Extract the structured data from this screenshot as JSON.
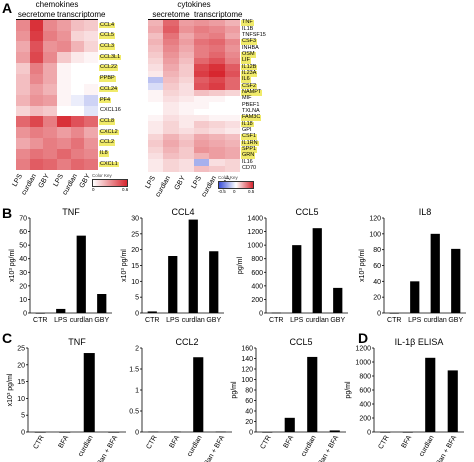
{
  "panels": {
    "A": "A",
    "B": "B",
    "C": "C",
    "D": "D"
  },
  "heatmap_left": {
    "group_label": "chemokines",
    "sub_labels": [
      "secretome",
      "transcriptome"
    ],
    "columns": [
      "LPS",
      "curdlan",
      "GBY",
      "LPS",
      "curdlan",
      "GBY"
    ],
    "genes": [
      "CCL4",
      "CCL5",
      "CCL3",
      "CCL3L1",
      "CCL22",
      "PPBP",
      "CCL24",
      "PF4",
      "CXCL16",
      "CCL8",
      "CXCL2",
      "CCL2",
      "IL8",
      "CXCL1"
    ],
    "highlighted": [
      "CCL4",
      "CCL5",
      "CCL3",
      "CCL3L1",
      "CCL22",
      "PPBP",
      "CCL24",
      "PF4",
      "CCL8",
      "CXCL2",
      "CCL2",
      "IL8",
      "CXCL1"
    ],
    "values": [
      [
        0.55,
        0.95,
        0.55,
        0.45,
        0.3,
        0.25
      ],
      [
        0.5,
        0.9,
        0.6,
        0.5,
        0.2,
        0.15
      ],
      [
        0.4,
        0.8,
        0.5,
        0.55,
        0.35,
        0.2
      ],
      [
        0.45,
        0.85,
        0.55,
        0.25,
        0.1,
        0.05
      ],
      [
        0.25,
        0.6,
        0.4,
        0.05,
        0.0,
        0.0
      ],
      [
        0.3,
        0.55,
        0.4,
        0.05,
        0.0,
        0.0
      ],
      [
        0.3,
        0.45,
        0.35,
        0.05,
        0.0,
        0.05
      ],
      [
        0.35,
        0.5,
        0.45,
        0.05,
        -0.1,
        -0.25
      ],
      [
        0.2,
        0.3,
        0.25,
        0.0,
        0.0,
        -0.15
      ],
      [
        0.7,
        0.85,
        0.6,
        0.95,
        0.8,
        0.7
      ],
      [
        0.5,
        0.6,
        0.55,
        0.45,
        0.55,
        0.4
      ],
      [
        0.4,
        0.5,
        0.6,
        0.55,
        0.65,
        0.5
      ],
      [
        0.55,
        0.65,
        0.6,
        0.7,
        0.6,
        0.55
      ],
      [
        0.6,
        0.75,
        0.7,
        0.6,
        0.7,
        0.65
      ]
    ],
    "key_title": "Color Key",
    "key_ticks": [
      "0",
      "0.6"
    ]
  },
  "heatmap_right": {
    "group_label": "cytokines",
    "sub_labels": [
      "secretome",
      "transcriptome"
    ],
    "columns": [
      "LPS",
      "curdlan",
      "GBY",
      "LPS",
      "curdlan",
      "GBY"
    ],
    "genes": [
      "TNF",
      "IL1B",
      "TNFSF15",
      "CSF3",
      "INHBA",
      "OSM",
      "LIF",
      "IL12B",
      "IL23A",
      "IL6",
      "CSF2",
      "NAMPT",
      "MIF",
      "PBEF1",
      "TXLNA",
      "FAM3C",
      "IL18",
      "GPI",
      "CSF1",
      "IL1RN",
      "SPP1",
      "GRN",
      "IL16",
      "CD70"
    ],
    "highlighted": [
      "TNF",
      "CSF3",
      "OSM",
      "LIF",
      "IL12B",
      "IL23A",
      "IL6",
      "CSF2",
      "NAMPT",
      "FAM3C",
      "IL18",
      "CSF1",
      "IL1RN",
      "SPP1",
      "GRN"
    ],
    "values": [
      [
        0.35,
        0.7,
        0.45,
        0.5,
        0.45,
        0.35
      ],
      [
        0.4,
        0.75,
        0.5,
        0.6,
        0.55,
        0.45
      ],
      [
        0.3,
        0.65,
        0.4,
        0.55,
        0.6,
        0.4
      ],
      [
        0.35,
        0.6,
        0.45,
        0.65,
        0.7,
        0.55
      ],
      [
        0.3,
        0.55,
        0.4,
        0.6,
        0.65,
        0.5
      ],
      [
        0.25,
        0.5,
        0.35,
        0.6,
        0.7,
        0.55
      ],
      [
        0.2,
        0.45,
        0.3,
        0.7,
        0.8,
        0.6
      ],
      [
        0.15,
        0.4,
        0.25,
        0.85,
        0.95,
        0.75
      ],
      [
        0.1,
        0.35,
        0.25,
        0.9,
        1.0,
        0.8
      ],
      [
        -0.35,
        0.3,
        0.2,
        0.75,
        0.85,
        0.7
      ],
      [
        -0.2,
        0.25,
        0.15,
        0.8,
        0.9,
        0.7
      ],
      [
        0.05,
        0.2,
        0.15,
        0.3,
        0.25,
        0.2
      ],
      [
        0.05,
        0.15,
        0.1,
        0.05,
        0.05,
        0.0
      ],
      [
        0.0,
        0.1,
        0.05,
        0.05,
        0.0,
        0.0
      ],
      [
        0.0,
        0.1,
        0.05,
        0.0,
        0.0,
        0.0
      ],
      [
        0.05,
        0.15,
        0.1,
        0.1,
        0.05,
        0.05
      ],
      [
        0.1,
        0.2,
        0.1,
        0.25,
        0.2,
        0.15
      ],
      [
        0.1,
        0.2,
        0.15,
        0.2,
        0.15,
        0.1
      ],
      [
        0.2,
        0.35,
        0.25,
        0.4,
        0.35,
        0.3
      ],
      [
        0.25,
        0.4,
        0.3,
        0.45,
        0.4,
        0.35
      ],
      [
        0.2,
        0.35,
        0.25,
        0.5,
        0.45,
        0.4
      ],
      [
        0.15,
        0.3,
        0.25,
        0.35,
        0.45,
        0.4
      ],
      [
        0.1,
        0.2,
        0.15,
        -0.45,
        0.15,
        0.2
      ],
      [
        0.1,
        0.2,
        0.15,
        0.3,
        0.25,
        0.2
      ]
    ],
    "key_title": "Color Key",
    "key_ticks": [
      "-0.5",
      "0",
      "0.5"
    ]
  },
  "colors": {
    "heat_high": "#d7262f",
    "heat_mid": "#ffffff",
    "heat_low": "#3a4fd8",
    "highlight": "#f0ea6a",
    "bar": "#000000"
  },
  "chart_data": [
    {
      "type": "bar",
      "title": "TNF",
      "ylabel": "x10³ pg/ml",
      "categories": [
        "CTR",
        "LPS",
        "curdlan",
        "GBY"
      ],
      "values": [
        0,
        3,
        57,
        14
      ],
      "ylim": [
        0,
        70
      ],
      "yticks": [
        "0",
        "10",
        "20",
        "30",
        "40",
        "50",
        "60",
        "70"
      ]
    },
    {
      "type": "bar",
      "title": "CCL4",
      "ylabel": "x10³ pg/ml",
      "categories": [
        "CTR",
        "LPS",
        "curdlan",
        "GBY"
      ],
      "values": [
        0.5,
        18,
        29.5,
        19.5
      ],
      "ylim": [
        0,
        30
      ],
      "yticks": [
        "0",
        "5",
        "10",
        "15",
        "20",
        "25",
        "30"
      ]
    },
    {
      "type": "bar",
      "title": "CCL5",
      "ylabel": "pg/ml",
      "categories": [
        "CTR",
        "LPS",
        "curdlan",
        "GBY"
      ],
      "values": [
        5,
        1000,
        1250,
        370
      ],
      "ylim": [
        0,
        1400
      ],
      "yticks": [
        "0",
        "200",
        "400",
        "600",
        "800",
        "1000",
        "1200",
        "1400"
      ]
    },
    {
      "type": "bar",
      "title": "IL8",
      "ylabel": "x10³ pg/ml",
      "categories": [
        "CTR",
        "LPS",
        "curdlan",
        "GBY"
      ],
      "values": [
        0,
        40,
        100,
        81
      ],
      "ylim": [
        0,
        120
      ],
      "yticks": [
        "0",
        "20",
        "40",
        "60",
        "80",
        "100",
        "120"
      ]
    },
    {
      "type": "bar",
      "title": "TNF",
      "ylabel": "x10³ pg/ml",
      "categories": [
        "CTR",
        "BFA",
        "curdlan",
        "curdlan + BFA"
      ],
      "values": [
        0,
        0,
        23.5,
        0
      ],
      "ylim": [
        0,
        25
      ],
      "yticks": [
        "0",
        "5",
        "10",
        "15",
        "20",
        "25"
      ]
    },
    {
      "type": "bar",
      "title": "CCL2",
      "ylabel": "",
      "categories": [
        "CTR",
        "BFA",
        "curdlan",
        "curdlan + BFA"
      ],
      "values": [
        0.01,
        0.01,
        1.78,
        0.01
      ],
      "ylim": [
        0,
        2
      ],
      "yticks": [
        "0",
        "0.5",
        "1",
        "1.5",
        "2"
      ]
    },
    {
      "type": "bar",
      "title": "CCL5",
      "ylabel": "pg/ml",
      "categories": [
        "CTR",
        "BFA",
        "curdlan",
        "curdlan + BFA"
      ],
      "values": [
        0,
        27,
        143,
        3
      ],
      "ylim": [
        0,
        160
      ],
      "yticks": [
        "0",
        "20",
        "40",
        "60",
        "80",
        "100",
        "120",
        "140",
        "160"
      ]
    },
    {
      "type": "bar",
      "title": "IL-1β ELISA",
      "ylabel": "pg/ml",
      "categories": [
        "CTR",
        "BFA",
        "curdlan",
        "curdlan + BFA"
      ],
      "values": [
        0,
        0,
        1060,
        880
      ],
      "ylim": [
        0,
        1200
      ],
      "yticks": [
        "0",
        "200",
        "400",
        "600",
        "800",
        "1000",
        "1200"
      ]
    }
  ]
}
